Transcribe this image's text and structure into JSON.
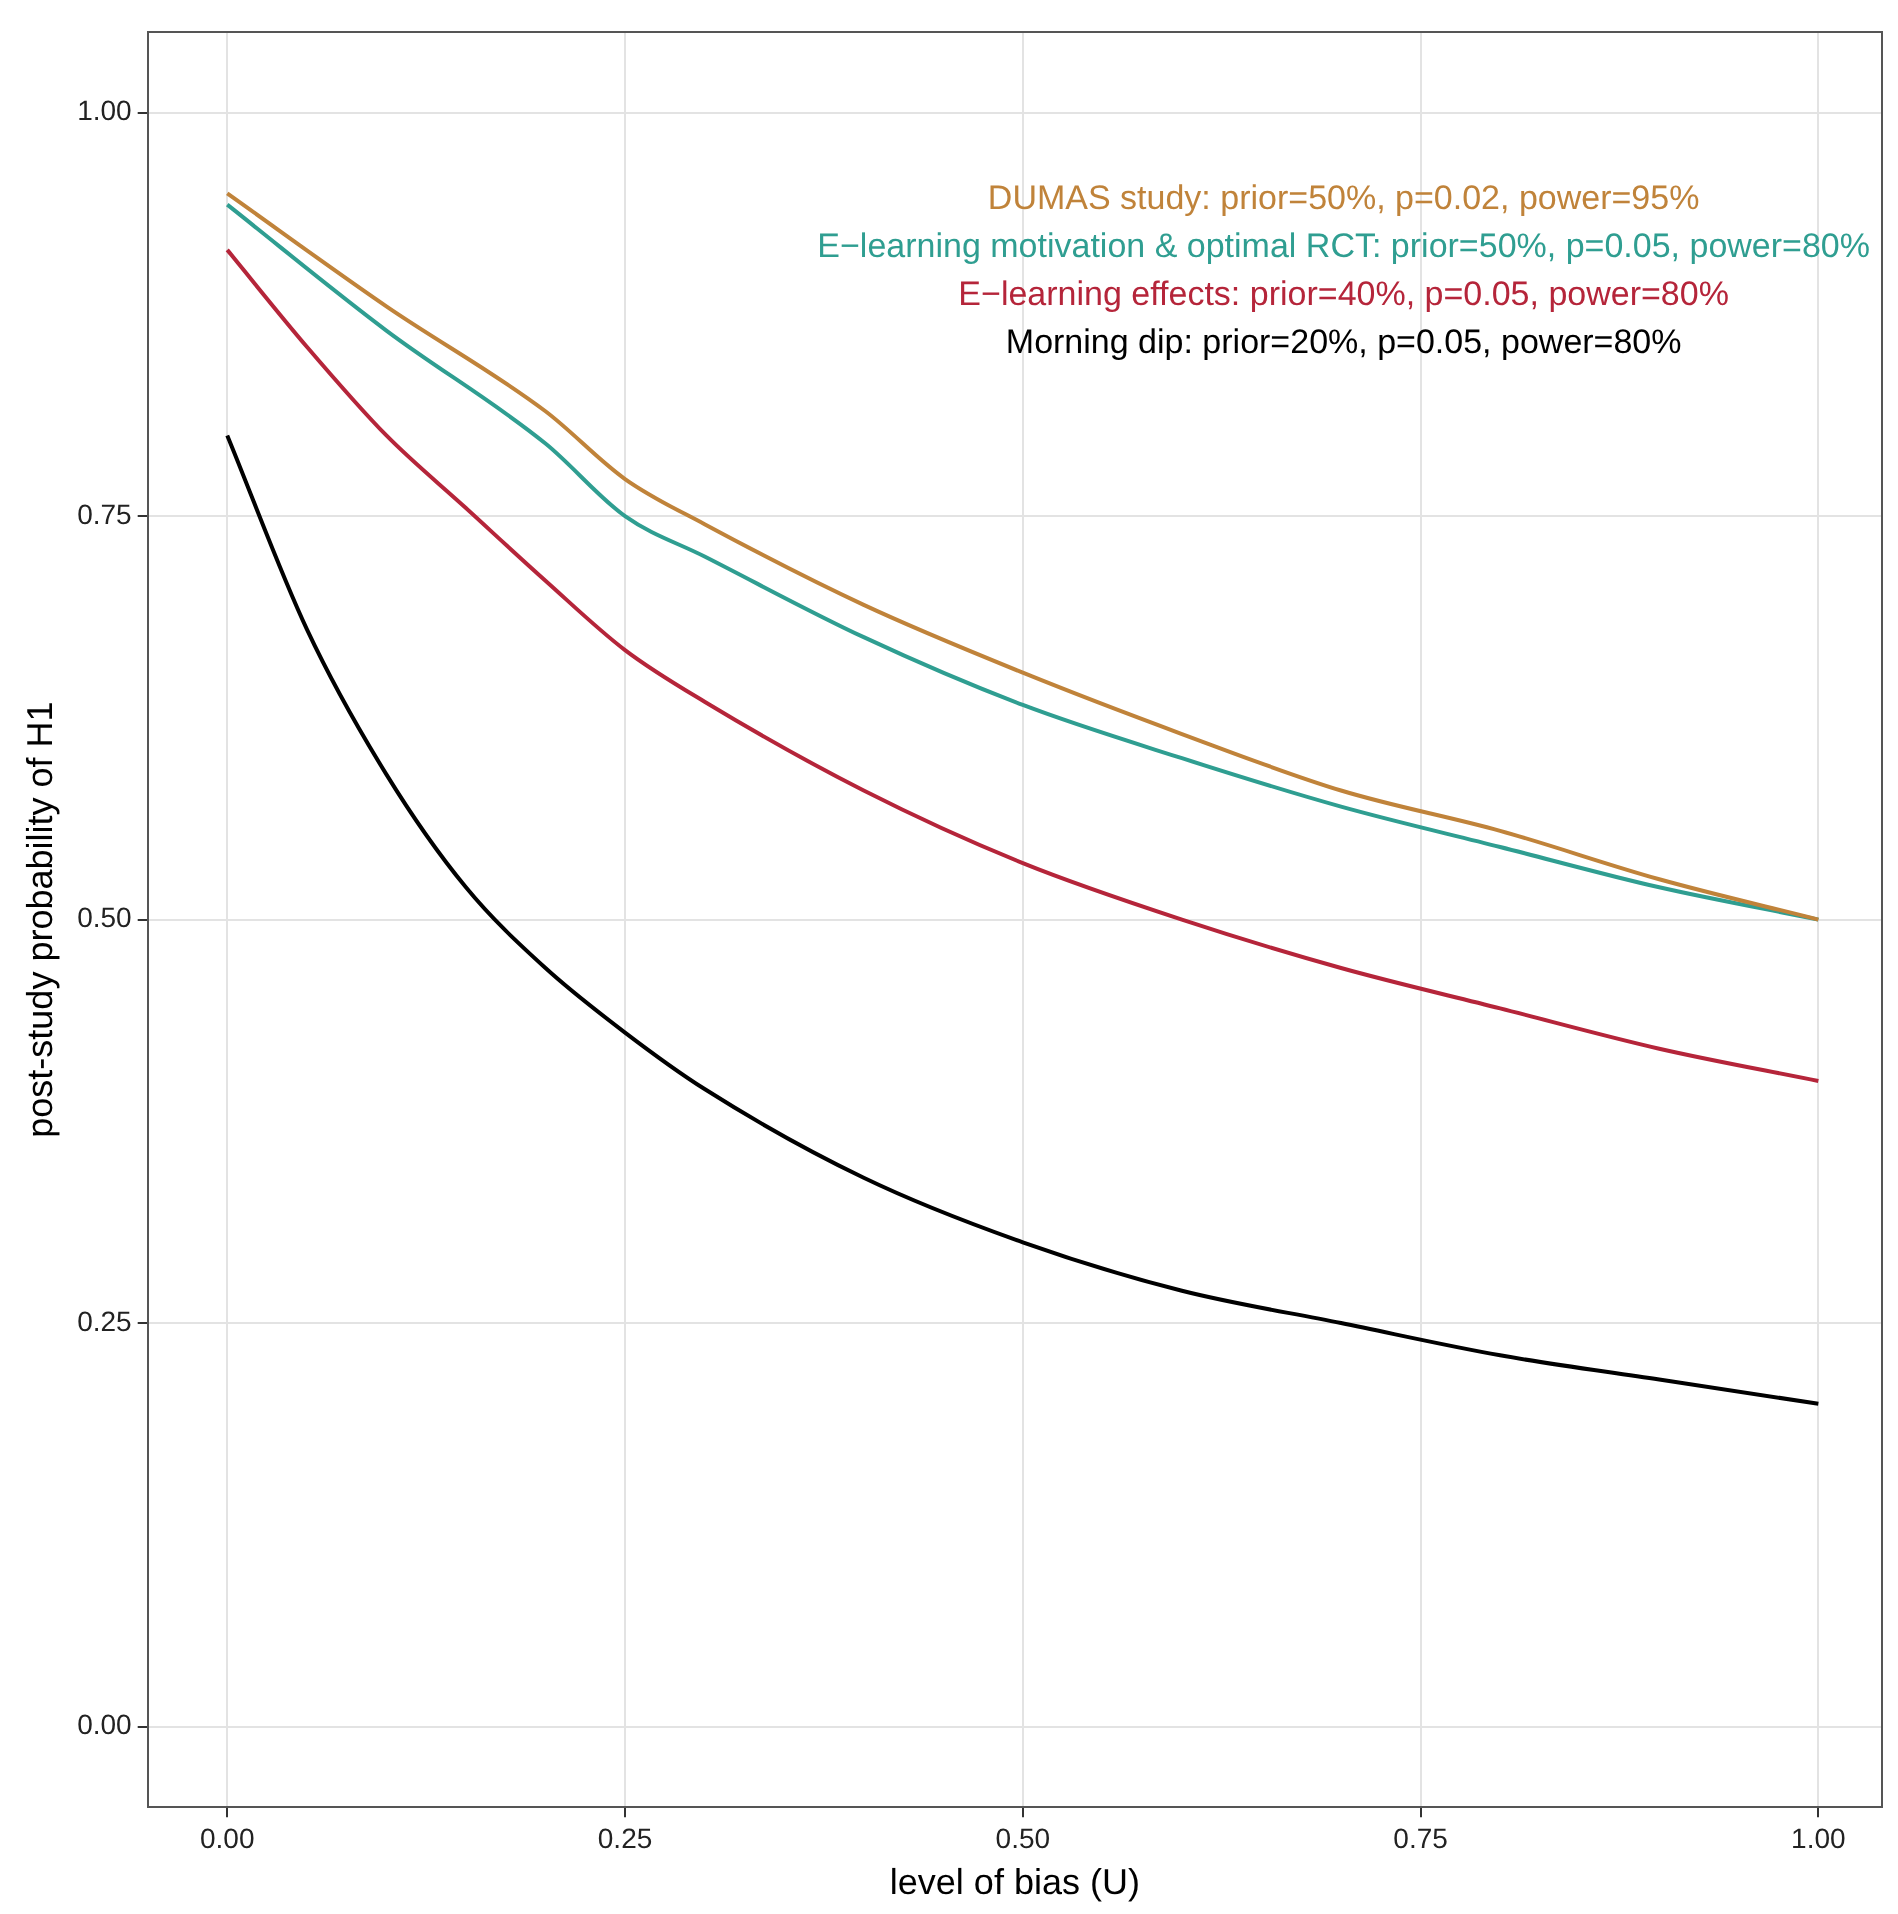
{
  "chart_data": {
    "type": "line",
    "xlabel": "level of bias (U)",
    "ylabel": "post-study probability of H1",
    "xlim": [
      -0.05,
      1.04
    ],
    "ylim": [
      -0.05,
      1.05
    ],
    "xticks": [
      {
        "value": 0,
        "label": "0.00"
      },
      {
        "value": 0.25,
        "label": "0.25"
      },
      {
        "value": 0.5,
        "label": "0.50"
      },
      {
        "value": 0.75,
        "label": "0.75"
      },
      {
        "value": 1,
        "label": "1.00"
      }
    ],
    "yticks": [
      {
        "value": 0,
        "label": "0.00"
      },
      {
        "value": 0.25,
        "label": "0.25"
      },
      {
        "value": 0.5,
        "label": "0.50"
      },
      {
        "value": 0.75,
        "label": "0.75"
      },
      {
        "value": 1,
        "label": "1.00"
      }
    ],
    "grid": true,
    "legend": "top right",
    "marker": "none",
    "line_style": "solid",
    "series": [
      {
        "name": "DUMAS study: prior=50%, p=0.02, power=95%",
        "color": "#c0833a",
        "x": [
          0,
          0.1,
          0.2,
          0.25,
          0.3,
          0.4,
          0.5,
          0.6,
          0.7,
          0.8,
          0.9,
          1
        ],
        "values": [
          0.95,
          0.88,
          0.815,
          0.773,
          0.745,
          0.695,
          0.653,
          0.615,
          0.58,
          0.555,
          0.525,
          0.5
        ]
      },
      {
        "name": "E−learning motivation & optimal RCT: prior=50%, p=0.05, power=80%",
        "color": "#2f9e91",
        "x": [
          0,
          0.1,
          0.2,
          0.25,
          0.3,
          0.4,
          0.5,
          0.6,
          0.7,
          0.8,
          0.9,
          1
        ],
        "values": [
          0.943,
          0.865,
          0.795,
          0.75,
          0.725,
          0.675,
          0.633,
          0.6,
          0.57,
          0.545,
          0.52,
          0.5
        ]
      },
      {
        "name": "E−learning effects: prior=40%, p=0.05, power=80%",
        "color": "#b5253a",
        "x": [
          0,
          0.05,
          0.1,
          0.15,
          0.2,
          0.25,
          0.3,
          0.4,
          0.5,
          0.6,
          0.7,
          0.8,
          0.9,
          1
        ],
        "values": [
          0.915,
          0.855,
          0.8,
          0.755,
          0.71,
          0.667,
          0.635,
          0.58,
          0.535,
          0.5,
          0.47,
          0.445,
          0.42,
          0.4
        ]
      },
      {
        "name": "Morning dip: prior=20%, p=0.05, power=80%",
        "color": "#000000",
        "x": [
          0,
          0.05,
          0.1,
          0.15,
          0.2,
          0.25,
          0.3,
          0.4,
          0.5,
          0.6,
          0.7,
          0.8,
          0.9,
          1
        ],
        "values": [
          0.8,
          0.68,
          0.59,
          0.52,
          0.47,
          0.43,
          0.395,
          0.34,
          0.3,
          0.27,
          0.25,
          0.23,
          0.215,
          0.2
        ]
      }
    ]
  }
}
